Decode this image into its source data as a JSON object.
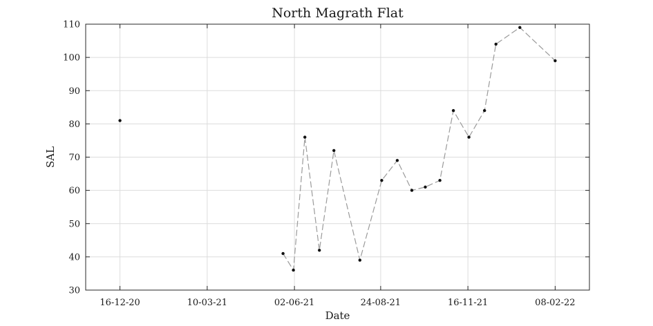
{
  "chart_data": {
    "type": "scatter",
    "title": "North Magrath Flat",
    "xlabel": "Date",
    "ylabel": "SAL",
    "x_type": "date",
    "xlim": [
      "2020-11-13",
      "2022-03-13"
    ],
    "ylim": [
      30,
      110
    ],
    "x_ticks": [
      {
        "date": "2020-12-16",
        "label": "16-12-20"
      },
      {
        "date": "2021-03-10",
        "label": "10-03-21"
      },
      {
        "date": "2021-06-02",
        "label": "02-06-21"
      },
      {
        "date": "2021-08-24",
        "label": "24-08-21"
      },
      {
        "date": "2021-11-16",
        "label": "16-11-21"
      },
      {
        "date": "2022-02-08",
        "label": "08-02-22"
      }
    ],
    "y_ticks": [
      30,
      40,
      50,
      60,
      70,
      80,
      90,
      100,
      110
    ],
    "grid": true,
    "series": [
      {
        "style": "dashed line with point markers",
        "line_color": "#9a9a9a",
        "marker_color": "#111111",
        "points": [
          {
            "x": "2020-12-16",
            "y": 81,
            "connected": false
          },
          {
            "x": "2021-05-22",
            "y": 41
          },
          {
            "x": "2021-06-01",
            "y": 36
          },
          {
            "x": "2021-06-12",
            "y": 76
          },
          {
            "x": "2021-06-26",
            "y": 42
          },
          {
            "x": "2021-07-10",
            "y": 72
          },
          {
            "x": "2021-08-04",
            "y": 39
          },
          {
            "x": "2021-08-25",
            "y": 63
          },
          {
            "x": "2021-09-09",
            "y": 69
          },
          {
            "x": "2021-09-23",
            "y": 60
          },
          {
            "x": "2021-10-06",
            "y": 61
          },
          {
            "x": "2021-10-20",
            "y": 63
          },
          {
            "x": "2021-11-02",
            "y": 84
          },
          {
            "x": "2021-11-17",
            "y": 76
          },
          {
            "x": "2021-12-02",
            "y": 84
          },
          {
            "x": "2021-12-13",
            "y": 104
          },
          {
            "x": "2022-01-05",
            "y": 109
          },
          {
            "x": "2022-02-08",
            "y": 99
          }
        ]
      }
    ]
  }
}
